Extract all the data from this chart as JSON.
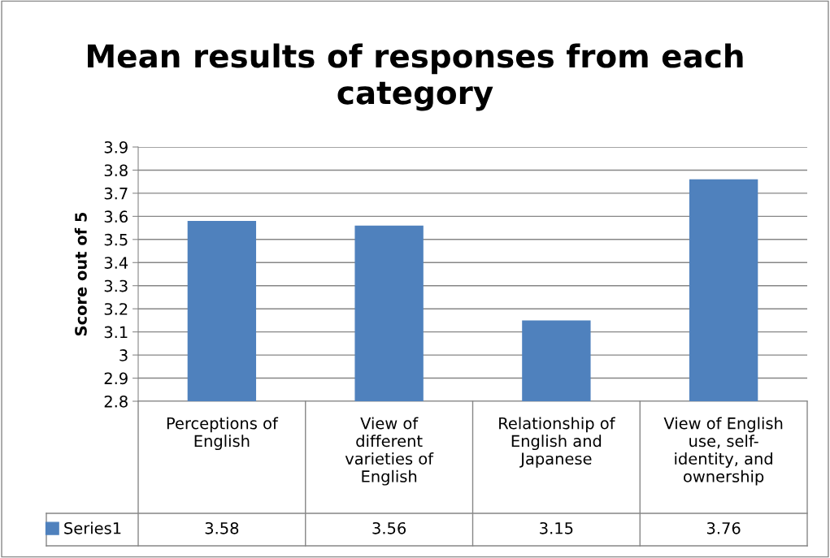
{
  "chart_data": {
    "type": "bar",
    "title": "Mean results of responses from each category",
    "ylabel": "Score out of 5",
    "categories": [
      "Perceptions of English",
      "View of different varieties of English",
      "Relationship of English and Japanese",
      "View of English use, self-identity, and ownership"
    ],
    "series": [
      {
        "name": "Series1",
        "color": "#4f81bd",
        "values": [
          3.58,
          3.56,
          3.15,
          3.76
        ]
      }
    ],
    "ylim": [
      2.8,
      3.9
    ],
    "yticks": [
      2.8,
      2.9,
      3,
      3.1,
      3.2,
      3.3,
      3.4,
      3.5,
      3.6,
      3.7,
      3.8,
      3.9
    ],
    "grid": "y",
    "legend": "bottom left",
    "data_labels": true
  }
}
